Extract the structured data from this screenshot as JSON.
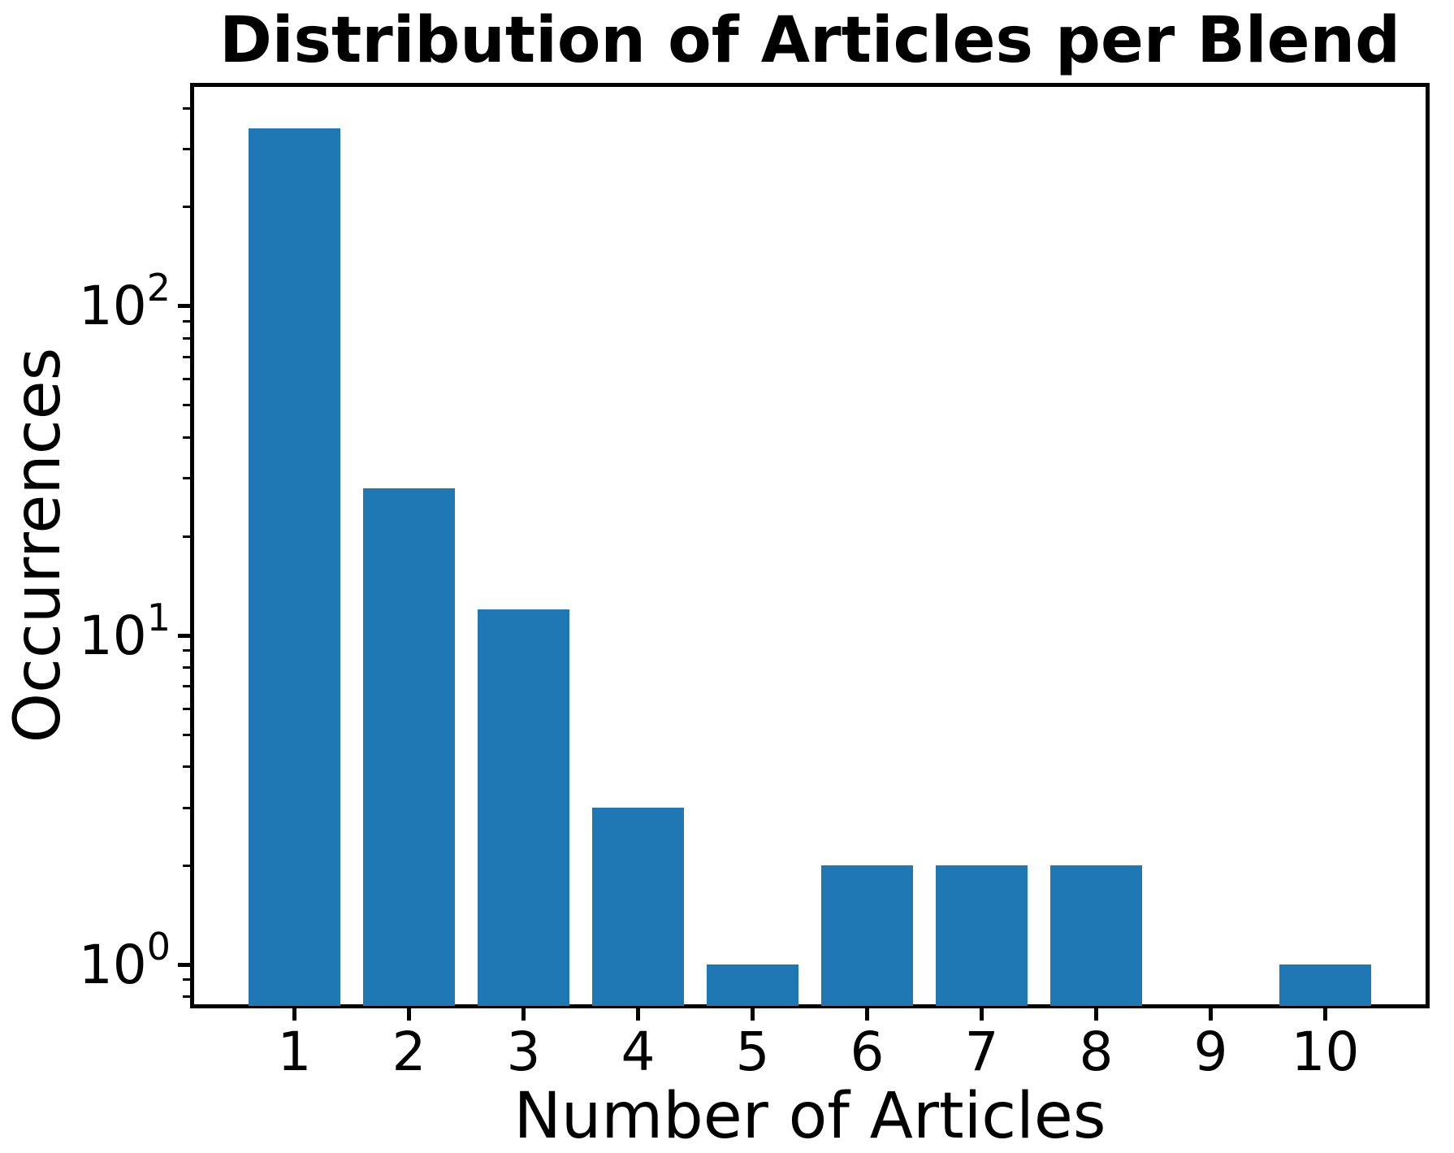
{
  "figure": {
    "background": "#ffffff"
  },
  "chart_data": {
    "type": "bar",
    "title": "Distribution of Articles per Blend",
    "xlabel": "Number of Articles",
    "ylabel": "Occurrences",
    "categories": [
      1,
      2,
      3,
      4,
      5,
      6,
      7,
      8,
      9,
      10
    ],
    "values": [
      347,
      28,
      12,
      3,
      1,
      2,
      2,
      2,
      0,
      1
    ],
    "bar_color": "#1f77b4",
    "bar_width_units": 0.8,
    "yscale": "log",
    "ylim": [
      0.75,
      469
    ],
    "xlim": [
      0.11,
      10.89
    ],
    "x_tick_labels": [
      "1",
      "2",
      "3",
      "4",
      "5",
      "6",
      "7",
      "8",
      "9",
      "10"
    ],
    "y_major_ticks": [
      {
        "value": 100,
        "base": "10",
        "exp": "2"
      },
      {
        "value": 10,
        "base": "10",
        "exp": "1"
      },
      {
        "value": 1,
        "base": "10",
        "exp": "0"
      }
    ],
    "y_minor_ticks": [
      400,
      300,
      200,
      90,
      80,
      70,
      60,
      50,
      40,
      30,
      20,
      9,
      8,
      7,
      6,
      5,
      4,
      3,
      2,
      0.9,
      0.8
    ],
    "grid": false,
    "legend": null,
    "axis_color": "#000000",
    "text_color": "#000000"
  }
}
